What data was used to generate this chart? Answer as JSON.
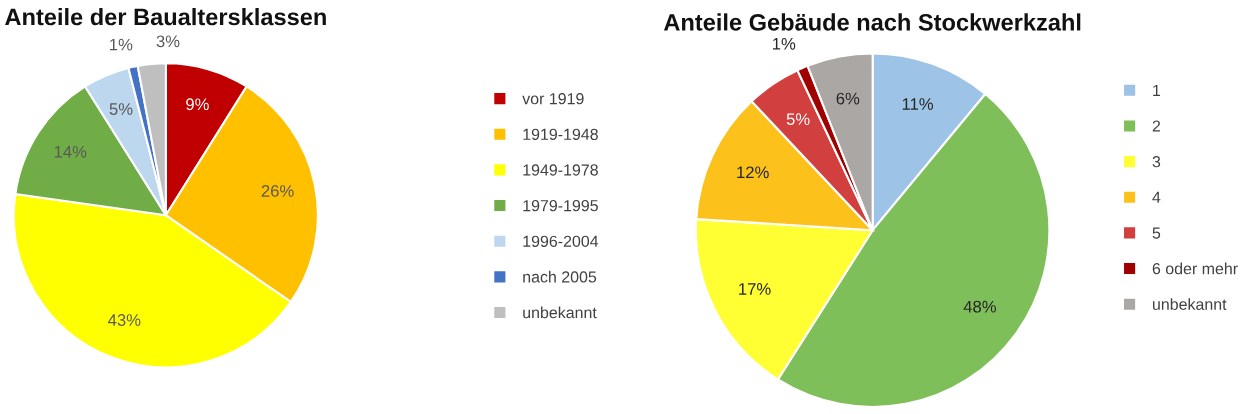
{
  "chart_data": [
    {
      "type": "pie",
      "title": "Anteile der Baualtersklassen",
      "categories": [
        "vor 1919",
        "1919-1948",
        "1949-1978",
        "1979-1995",
        "1996-2004",
        "nach 2005",
        "unbekannt"
      ],
      "values": [
        9,
        26,
        43,
        14,
        5,
        1,
        3
      ],
      "value_labels": [
        "9%",
        "26%",
        "43%",
        "14%",
        "5%",
        "1%",
        "3%"
      ],
      "colors": [
        "#c00000",
        "#ffc000",
        "#ffff00",
        "#70ad47",
        "#bdd7ee",
        "#4472c4",
        "#bfbfbf"
      ],
      "legend": "right"
    },
    {
      "type": "pie",
      "title": "Anteile Gebäude nach Stockwerkzahl",
      "categories": [
        "1",
        "2",
        "3",
        "4",
        "5",
        "6 oder mehr",
        "unbekannt"
      ],
      "values": [
        11,
        48,
        17,
        12,
        5,
        1,
        6
      ],
      "value_labels": [
        "11%",
        "48%",
        "17%",
        "12%",
        "5%",
        "1%",
        "6%"
      ],
      "colors": [
        "#9dc3e6",
        "#7fbf5a",
        "#ffff33",
        "#fcc21b",
        "#d23f3f",
        "#a00000",
        "#aaa7a5"
      ],
      "legend": "right"
    }
  ]
}
